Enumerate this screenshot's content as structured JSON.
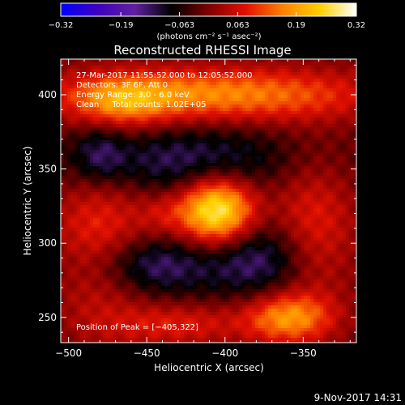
{
  "chart_data": {
    "type": "heatmap",
    "title": "Reconstructed RHESSI Image",
    "xlabel": "Heliocentric X (arcsec)",
    "ylabel": "Heliocentric Y (arcsec)",
    "xlim": [
      -505,
      -316
    ],
    "ylim": [
      233,
      424
    ],
    "x_ticks": [
      -500,
      -450,
      -400,
      -350
    ],
    "y_ticks": [
      250,
      300,
      350,
      400
    ],
    "x_tick_labels": [
      "−500",
      "−450",
      "−400",
      "−350"
    ],
    "y_tick_labels": [
      "250",
      "300",
      "350",
      "400"
    ],
    "grid": false,
    "colorbar": {
      "min": -0.32,
      "max": 0.32,
      "ticks": [
        -0.32,
        -0.19,
        -0.063,
        0.063,
        0.19,
        0.32
      ],
      "tick_labels": [
        "−0.32",
        "−0.19",
        "−0.063",
        "0.063",
        "0.19",
        "0.32"
      ],
      "unit_label": "(photons cm⁻² s⁻¹ asec⁻²)",
      "colormap": [
        "#0000ff",
        "#4000c0",
        "#6020a0",
        "#000000",
        "#800000",
        "#e01000",
        "#ff8000",
        "#ffd000",
        "#ffffff"
      ]
    },
    "annotations": [
      "27-Mar-2017 11:55:52.000 to 12:05:52.000",
      "Detectors: 3F 6F, Att 0",
      "Energy Range: 3.0 - 6.0 keV",
      "Clean     Total counts: 1.02E+05"
    ],
    "peak_label": "Position of Peak = [−405,322]",
    "peak_position": [
      -405,
      322
    ],
    "sources": [
      {
        "x": -405,
        "y": 322,
        "sx": 17,
        "sy": 16,
        "amp": 0.32
      },
      {
        "x": -405,
        "y": 400,
        "sx": 70,
        "sy": 13,
        "amp": 0.19
      },
      {
        "x": -465,
        "y": 395,
        "sx": 22,
        "sy": 12,
        "amp": 0.12
      },
      {
        "x": -345,
        "y": 310,
        "sx": 20,
        "sy": 36,
        "amp": 0.12
      },
      {
        "x": -360,
        "y": 250,
        "sx": 20,
        "sy": 12,
        "amp": 0.19
      },
      {
        "x": -480,
        "y": 305,
        "sx": 22,
        "sy": 45,
        "amp": 0.12
      },
      {
        "x": -430,
        "y": 245,
        "sx": 30,
        "sy": 10,
        "amp": 0.1
      },
      {
        "x": -440,
        "y": 320,
        "sx": 12,
        "sy": 10,
        "amp": 0.06
      },
      {
        "x": -430,
        "y": 355,
        "sx": 60,
        "sy": 18,
        "amp": -0.11
      },
      {
        "x": -450,
        "y": 285,
        "sx": 30,
        "sy": 14,
        "amp": -0.13
      },
      {
        "x": -375,
        "y": 290,
        "sx": 24,
        "sy": 20,
        "amp": -0.13
      },
      {
        "x": -480,
        "y": 360,
        "sx": 12,
        "sy": 15,
        "amp": -0.09
      }
    ]
  },
  "footer": {
    "date": "9-Nov-2017 14:31"
  }
}
